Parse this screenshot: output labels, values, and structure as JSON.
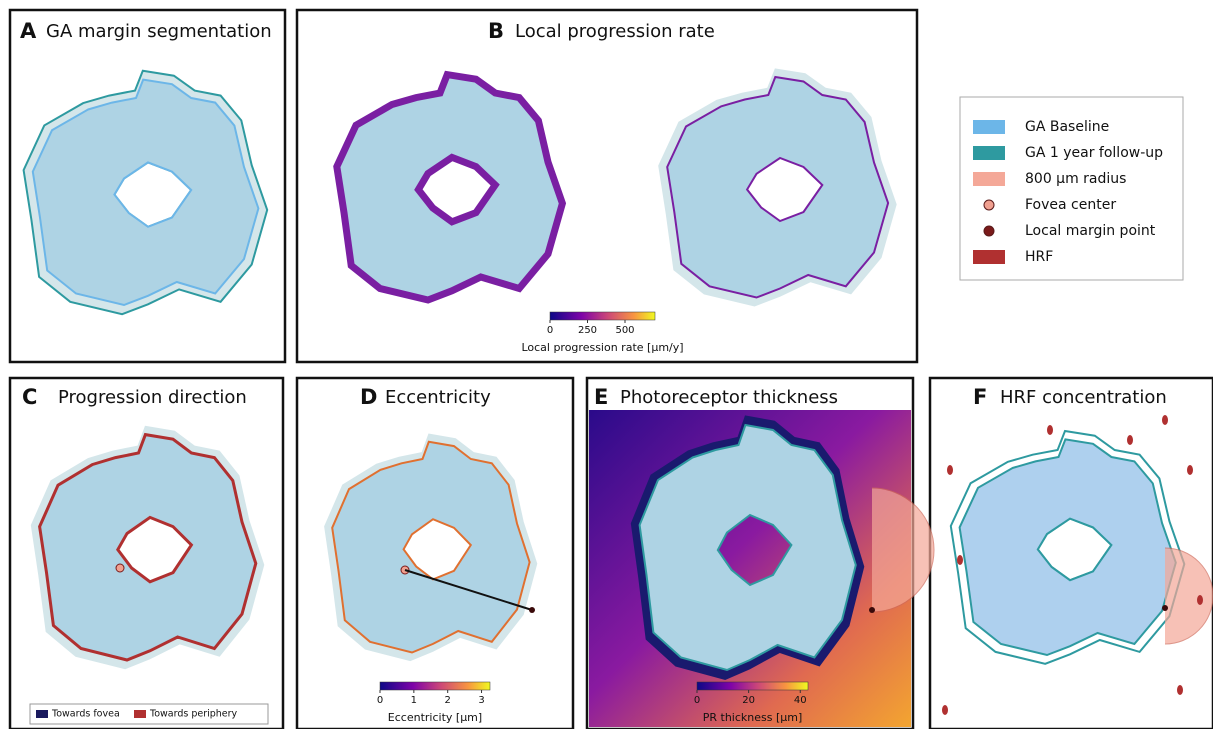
{
  "panels": [
    {
      "letter": "A",
      "title": "GA margin segmentation"
    },
    {
      "letter": "B",
      "title": "Local progression rate",
      "colorbar": {
        "label": "Local progression rate [μm/y]",
        "lim": [
          0,
          700
        ],
        "ticks": [
          0,
          250,
          500
        ]
      }
    },
    {
      "letter": "C",
      "title": "Progression direction",
      "legend": [
        "Towards fovea",
        "Towards periphery"
      ]
    },
    {
      "letter": "D",
      "title": "Eccentricity",
      "colorbar": {
        "label": "Eccentricity [μm]",
        "lim": [
          0,
          3.25
        ],
        "ticks": [
          0,
          1,
          2,
          3
        ]
      }
    },
    {
      "letter": "E",
      "title": "Photoreceptor thickness",
      "colorbar": {
        "label": "PR thickness [μm]",
        "lim": [
          0,
          43
        ],
        "ticks": [
          0,
          20,
          40
        ]
      }
    },
    {
      "letter": "F",
      "title": "HRF concentration"
    }
  ],
  "legend": [
    {
      "label": "GA Baseline",
      "color": "#6cb6e8"
    },
    {
      "label": "GA 1 year follow-up",
      "color": "#2e9aa0"
    },
    {
      "label": "800 μm radius",
      "color": "#f4a898"
    },
    {
      "label": "Fovea center",
      "color": "#f0a090"
    },
    {
      "label": "Local margin point",
      "color": "#7a1a1a"
    },
    {
      "label": "HRF",
      "color": "#b03030"
    }
  ]
}
